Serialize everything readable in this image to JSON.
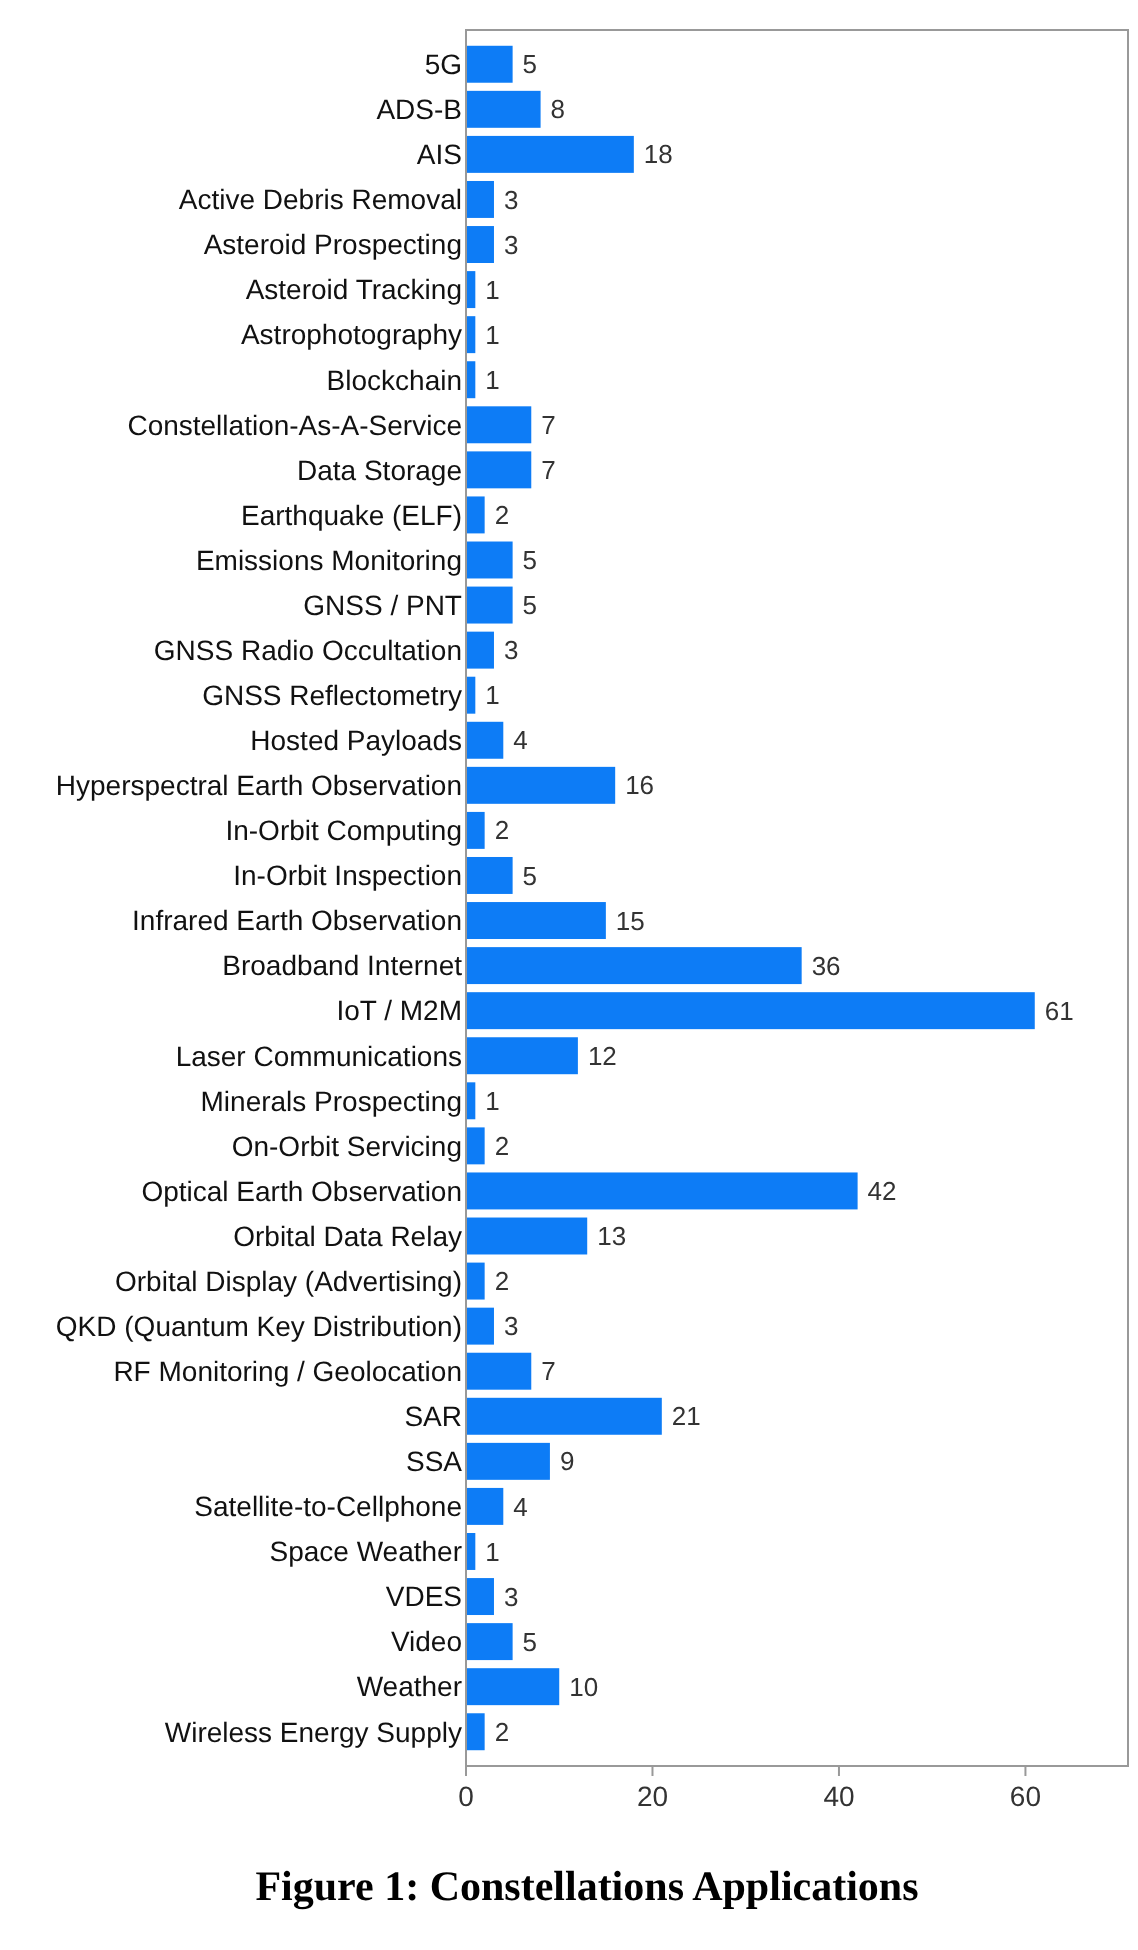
{
  "chart_data": {
    "type": "bar",
    "orientation": "horizontal",
    "title": "Figure 1: Constellations Applications",
    "categories": [
      "5G",
      "ADS-B",
      "AIS",
      "Active Debris Removal",
      "Asteroid Prospecting",
      "Asteroid Tracking",
      "Astrophotography",
      "Blockchain",
      "Constellation-As-A-Service",
      "Data Storage",
      "Earthquake (ELF)",
      "Emissions Monitoring",
      "GNSS / PNT",
      "GNSS Radio Occultation",
      "GNSS Reflectometry",
      "Hosted Payloads",
      "Hyperspectral Earth Observation",
      "In-Orbit Computing",
      "In-Orbit Inspection",
      "Infrared Earth Observation",
      "Broadband Internet",
      "IoT / M2M",
      "Laser Communications",
      "Minerals Prospecting",
      "On-Orbit Servicing",
      "Optical Earth Observation",
      "Orbital Data Relay",
      "Orbital Display (Advertising)",
      "QKD (Quantum Key Distribution)",
      "RF Monitoring / Geolocation",
      "SAR",
      "SSA",
      "Satellite-to-Cellphone",
      "Space Weather",
      "VDES",
      "Video",
      "Weather",
      "Wireless Energy Supply"
    ],
    "values": [
      5,
      8,
      18,
      3,
      3,
      1,
      1,
      1,
      7,
      7,
      2,
      5,
      5,
      3,
      1,
      4,
      16,
      2,
      5,
      15,
      36,
      61,
      12,
      1,
      2,
      42,
      13,
      2,
      3,
      7,
      21,
      9,
      4,
      1,
      3,
      5,
      10,
      2
    ],
    "color": "#0d7cf6",
    "xlim": [
      0,
      71
    ],
    "xticks": [
      0,
      20,
      40,
      60
    ],
    "data_labels": true,
    "grid": false
  }
}
